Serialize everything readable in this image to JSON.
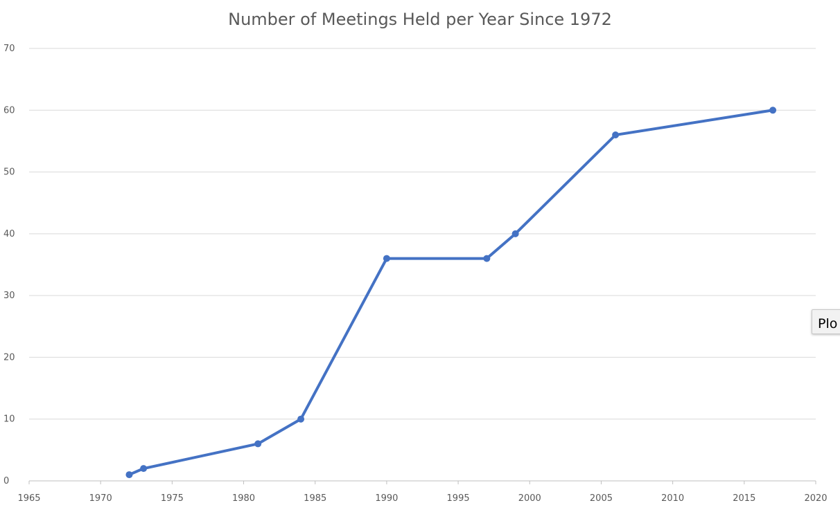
{
  "chart_data": {
    "type": "scatter",
    "title": "Number of Meetings Held per Year Since 1972",
    "xlabel": "",
    "ylabel": "",
    "xlim": [
      1965,
      2020
    ],
    "ylim": [
      0,
      70
    ],
    "x_ticks": [
      1965,
      1970,
      1975,
      1980,
      1985,
      1990,
      1995,
      2000,
      2005,
      2010,
      2015,
      2020
    ],
    "y_ticks": [
      0,
      10,
      20,
      30,
      40,
      50,
      60,
      70
    ],
    "grid": "horizontal",
    "legend": "none",
    "lines": true,
    "markers": true,
    "series": [
      {
        "color": "#4472C4",
        "x": [
          1972,
          1973,
          1981,
          1984,
          1990,
          1997,
          1999,
          2006,
          2017
        ],
        "y": [
          1,
          2,
          6,
          10,
          36,
          36,
          40,
          56,
          60
        ]
      }
    ]
  },
  "overlay": {
    "tooltip_text": "Plo"
  }
}
